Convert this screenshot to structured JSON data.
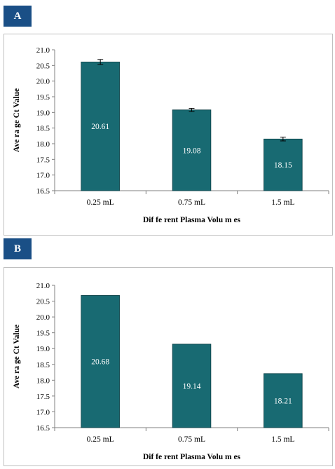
{
  "panels": [
    {
      "label": "A",
      "chart_data": {
        "type": "bar",
        "categories": [
          "0.25 mL",
          "0.75 mL",
          "1.5 mL"
        ],
        "values": [
          20.61,
          19.08,
          18.15
        ],
        "data_labels": [
          "20.61",
          "19.08",
          "18.15"
        ],
        "error": [
          0.08,
          0.05,
          0.06
        ],
        "xlabel": "Dif fe rent Plasma Volu m es",
        "ylabel": "Ave ra ge Ct Value",
        "ylim": [
          16.5,
          21.0
        ],
        "yticks": [
          "16.5",
          "17.0",
          "17.5",
          "18.0",
          "18.5",
          "19.0",
          "19.5",
          "20.0",
          "20.5",
          "21.0"
        ],
        "bar_color": "#186a72",
        "grid": false
      }
    },
    {
      "label": "B",
      "chart_data": {
        "type": "bar",
        "categories": [
          "0.25 mL",
          "0.75 mL",
          "1.5 mL"
        ],
        "values": [
          20.68,
          19.14,
          18.21
        ],
        "data_labels": [
          "20.68",
          "19.14",
          "18.21"
        ],
        "error": null,
        "xlabel": "Dif fe rent Plasma Volu m es",
        "ylabel": "Ave ra ge Ct Value",
        "ylim": [
          16.5,
          21.0
        ],
        "yticks": [
          "16.5",
          "17.0",
          "17.5",
          "18.0",
          "18.5",
          "19.0",
          "19.5",
          "20.0",
          "20.5",
          "21.0"
        ],
        "bar_color": "#186a72",
        "grid": false
      }
    }
  ]
}
